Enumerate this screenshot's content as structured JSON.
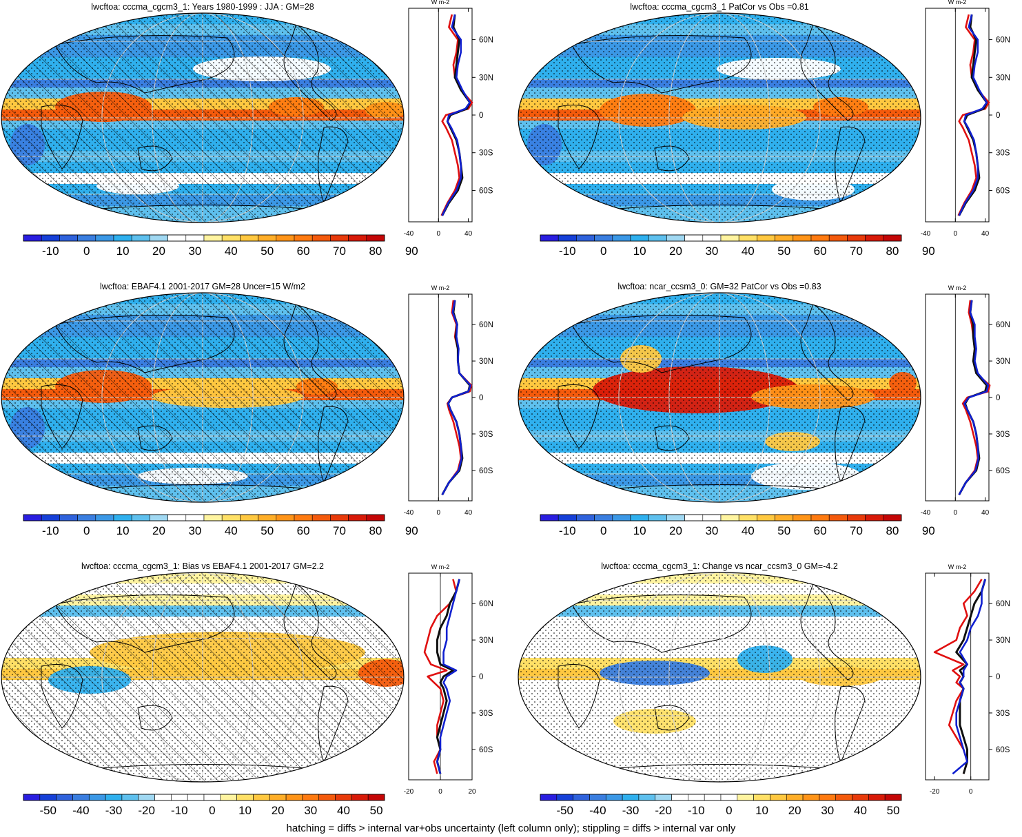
{
  "footnote": "hatching = diffs > internal var+obs uncertainty (left column only); stippling = diffs > internal var only",
  "colors": {
    "abs_scale": [
      "#2a1ee0",
      "#1640d8",
      "#2f62dc",
      "#3a7ee0",
      "#3b98e6",
      "#2fb0ee",
      "#5ec0ee",
      "#a0d8f2",
      "#ffffff",
      "#ffffff",
      "#fff4a0",
      "#ffe066",
      "#ffc840",
      "#ffae28",
      "#ff9418",
      "#ff7a10",
      "#f45a0c",
      "#e83a0a",
      "#d81a08",
      "#c40606"
    ],
    "diff_scale": [
      "#2a1ee0",
      "#1640d8",
      "#2f62dc",
      "#3a7ee0",
      "#3b98e6",
      "#2fb0ee",
      "#5ec0ee",
      "#a0d8f2",
      "#ffffff",
      "#ffffff",
      "#ffffff",
      "#ffffff",
      "#fff4a0",
      "#ffe066",
      "#ffc840",
      "#ffae28",
      "#ff9418",
      "#ff7a10",
      "#f45a0c",
      "#e83a0a",
      "#d81a08",
      "#c40606"
    ],
    "line_model": "#e01010",
    "line_obs": "#101010",
    "line_ref": "#1020d0"
  },
  "chart_data": [
    {
      "type": "heatmap",
      "title": "lwcftoa: cccma_cgcm3_1: Years 1980-1999 : JJA : GM=28",
      "colorbar_ticks": [
        "-10",
        "0",
        "10",
        "20",
        "30",
        "40",
        "50",
        "60",
        "70",
        "80",
        "90"
      ],
      "profile": {
        "unit": "W m-2",
        "x_ticks": [
          "-40",
          "0",
          "40"
        ],
        "xlim": [
          -40,
          45
        ],
        "y_ticks": [
          "60N",
          "30N",
          "0",
          "30S",
          "60S"
        ],
        "lat": [
          80,
          70,
          60,
          50,
          40,
          30,
          20,
          10,
          5,
          0,
          -5,
          -10,
          -20,
          -30,
          -40,
          -50,
          -60,
          -70,
          -80
        ],
        "series": [
          {
            "color": "line_model",
            "values": [
              18,
              14,
              26,
              24,
              20,
              22,
              30,
              45,
              40,
              10,
              5,
              10,
              18,
              22,
              26,
              28,
              22,
              12,
              4
            ]
          },
          {
            "color": "line_obs",
            "values": [
              22,
              20,
              28,
              26,
              24,
              22,
              30,
              42,
              38,
              16,
              12,
              16,
              24,
              28,
              30,
              32,
              26,
              14,
              5
            ]
          },
          {
            "color": "line_ref",
            "values": [
              22,
              18,
              30,
              30,
              26,
              24,
              32,
              42,
              36,
              14,
              12,
              17,
              25,
              28,
              30,
              30,
              24,
              13,
              5
            ]
          }
        ]
      }
    },
    {
      "type": "heatmap",
      "title": "lwcftoa: cccma_cgcm3_1 PatCor vs Obs =0.81",
      "colorbar_ticks": [
        "-10",
        "0",
        "10",
        "20",
        "30",
        "40",
        "50",
        "60",
        "70",
        "80",
        "90"
      ],
      "profile": {
        "unit": "W m-2",
        "x_ticks": [
          "-40",
          "0",
          "40"
        ],
        "xlim": [
          -40,
          45
        ],
        "y_ticks": [
          "60N",
          "30N",
          "0",
          "30S",
          "60S"
        ],
        "lat": [
          80,
          70,
          60,
          50,
          40,
          30,
          20,
          10,
          5,
          0,
          -5,
          -10,
          -20,
          -30,
          -40,
          -50,
          -60,
          -70,
          -80
        ],
        "series": [
          {
            "color": "line_model",
            "values": [
              18,
              14,
              26,
              24,
              20,
              22,
              30,
              45,
              40,
              10,
              5,
              10,
              18,
              22,
              26,
              28,
              22,
              12,
              4
            ]
          },
          {
            "color": "line_obs",
            "values": [
              22,
              20,
              28,
              26,
              24,
              22,
              30,
              42,
              38,
              16,
              12,
              16,
              24,
              28,
              30,
              32,
              26,
              14,
              5
            ]
          },
          {
            "color": "line_ref",
            "values": [
              22,
              18,
              30,
              30,
              26,
              24,
              32,
              42,
              36,
              14,
              12,
              17,
              25,
              28,
              30,
              30,
              24,
              13,
              5
            ]
          }
        ]
      }
    },
    {
      "type": "heatmap",
      "title": "lwcftoa: EBAF4.1 2001-2017 GM=28 Uncer=15 W/m2",
      "colorbar_ticks": [
        "-10",
        "0",
        "10",
        "20",
        "30",
        "40",
        "50",
        "60",
        "70",
        "80",
        "90"
      ],
      "profile": {
        "unit": "W m-2",
        "x_ticks": [
          "-40",
          "0",
          "40"
        ],
        "xlim": [
          -40,
          45
        ],
        "y_ticks": [
          "60N",
          "30N",
          "0",
          "30S",
          "60S"
        ],
        "lat": [
          80,
          70,
          60,
          50,
          40,
          30,
          20,
          10,
          5,
          0,
          -5,
          -10,
          -20,
          -30,
          -40,
          -50,
          -60,
          -70,
          -80
        ],
        "series": [
          {
            "color": "line_model",
            "values": [
              20,
              18,
              24,
              22,
              26,
              26,
              28,
              44,
              42,
              18,
              12,
              14,
              20,
              24,
              28,
              30,
              26,
              14,
              5
            ]
          },
          {
            "color": "line_obs",
            "values": [
              22,
              20,
              25,
              23,
              26,
              26,
              28,
              42,
              40,
              18,
              13,
              16,
              24,
              28,
              30,
              32,
              28,
              14,
              5
            ]
          },
          {
            "color": "line_ref",
            "values": [
              22,
              19,
              25,
              24,
              27,
              26,
              28,
              43,
              40,
              18,
              13,
              16,
              24,
              28,
              30,
              31,
              27,
              14,
              5
            ]
          }
        ]
      }
    },
    {
      "type": "heatmap",
      "title": "lwcftoa: ncar_ccsm3_0: GM=32 PatCor vs Obs =0.83",
      "colorbar_ticks": [
        "-10",
        "0",
        "10",
        "20",
        "30",
        "40",
        "50",
        "60",
        "70",
        "80",
        "90"
      ],
      "profile": {
        "unit": "W m-2",
        "x_ticks": [
          "-40",
          "0",
          "40"
        ],
        "xlim": [
          -40,
          45
        ],
        "y_ticks": [
          "60N",
          "30N",
          "0",
          "30S",
          "60S"
        ],
        "lat": [
          80,
          70,
          60,
          50,
          40,
          30,
          20,
          10,
          5,
          0,
          -5,
          -10,
          -20,
          -30,
          -40,
          -50,
          -60,
          -70,
          -80
        ],
        "series": [
          {
            "color": "line_model",
            "values": [
              20,
              18,
              22,
              24,
              26,
              24,
              28,
              46,
              44,
              16,
              10,
              14,
              20,
              24,
              28,
              30,
              26,
              14,
              5
            ]
          },
          {
            "color": "line_obs",
            "values": [
              22,
              20,
              24,
              24,
              26,
              24,
              28,
              42,
              40,
              18,
              13,
              16,
              24,
              28,
              30,
              32,
              28,
              14,
              5
            ]
          },
          {
            "color": "line_ref",
            "values": [
              22,
              20,
              26,
              26,
              28,
              26,
              30,
              44,
              42,
              18,
              12,
              16,
              24,
              28,
              30,
              31,
              27,
              14,
              5
            ]
          }
        ]
      }
    },
    {
      "type": "heatmap",
      "title": "lwcftoa: cccma_cgcm3_1: Bias vs EBAF4.1 2001-2017 GM=2.2",
      "colorbar_ticks": [
        "-50",
        "-40",
        "-30",
        "-20",
        "-10",
        "0",
        "10",
        "20",
        "30",
        "40",
        "50"
      ],
      "profile": {
        "unit": "W m-2",
        "x_ticks": [
          "-20",
          "0",
          "20"
        ],
        "xlim": [
          -20,
          20
        ],
        "y_ticks": [
          "60N",
          "30N",
          "0",
          "30S",
          "60S"
        ],
        "lat": [
          80,
          70,
          60,
          50,
          40,
          30,
          20,
          10,
          5,
          0,
          -5,
          -10,
          -20,
          -30,
          -40,
          -50,
          -60,
          -70,
          -80
        ],
        "series": [
          {
            "color": "line_model",
            "values": [
              8,
              10,
              6,
              -2,
              -6,
              -8,
              -10,
              -6,
              4,
              -8,
              -4,
              0,
              2,
              0,
              -2,
              -2,
              0,
              -4,
              -2
            ]
          },
          {
            "color": "line_obs",
            "values": [
              12,
              10,
              6,
              4,
              0,
              -2,
              -2,
              0,
              8,
              2,
              0,
              2,
              4,
              2,
              0,
              -2,
              0,
              -2,
              0
            ]
          },
          {
            "color": "line_ref",
            "values": [
              12,
              10,
              8,
              6,
              4,
              4,
              2,
              2,
              10,
              4,
              2,
              4,
              6,
              4,
              2,
              0,
              0,
              -2,
              0
            ]
          }
        ]
      }
    },
    {
      "type": "heatmap",
      "title": "lwcftoa: cccma_cgcm3_1: Change vs ncar_ccsm3_0 GM=-4.2",
      "colorbar_ticks": [
        "-50",
        "-40",
        "-30",
        "-20",
        "-10",
        "0",
        "10",
        "20",
        "30",
        "40",
        "50"
      ],
      "profile": {
        "unit": "W m-2",
        "x_ticks": [
          "-20",
          "0"
        ],
        "xlim": [
          -25,
          10
        ],
        "y_ticks": [
          "60N",
          "30N",
          "0",
          "30S",
          "60S"
        ],
        "lat": [
          80,
          70,
          60,
          50,
          40,
          30,
          20,
          10,
          5,
          0,
          -5,
          -10,
          -20,
          -30,
          -40,
          -50,
          -60,
          -70,
          -80
        ],
        "series": [
          {
            "color": "line_model",
            "values": [
              6,
              2,
              -4,
              -2,
              -6,
              -8,
              -20,
              -4,
              -10,
              -6,
              -8,
              -4,
              -8,
              -10,
              -12,
              -8,
              -4,
              -2,
              -4
            ]
          },
          {
            "color": "line_obs",
            "values": [
              8,
              6,
              2,
              0,
              -2,
              -4,
              -8,
              -2,
              -6,
              -4,
              -6,
              -4,
              -6,
              -6,
              -6,
              -4,
              -2,
              -2,
              -4
            ]
          },
          {
            "color": "line_ref",
            "values": [
              8,
              6,
              6,
              4,
              0,
              -2,
              -6,
              -2,
              -4,
              -4,
              -6,
              -4,
              -6,
              -8,
              -8,
              -6,
              -4,
              -2,
              -10
            ]
          }
        ]
      }
    }
  ]
}
